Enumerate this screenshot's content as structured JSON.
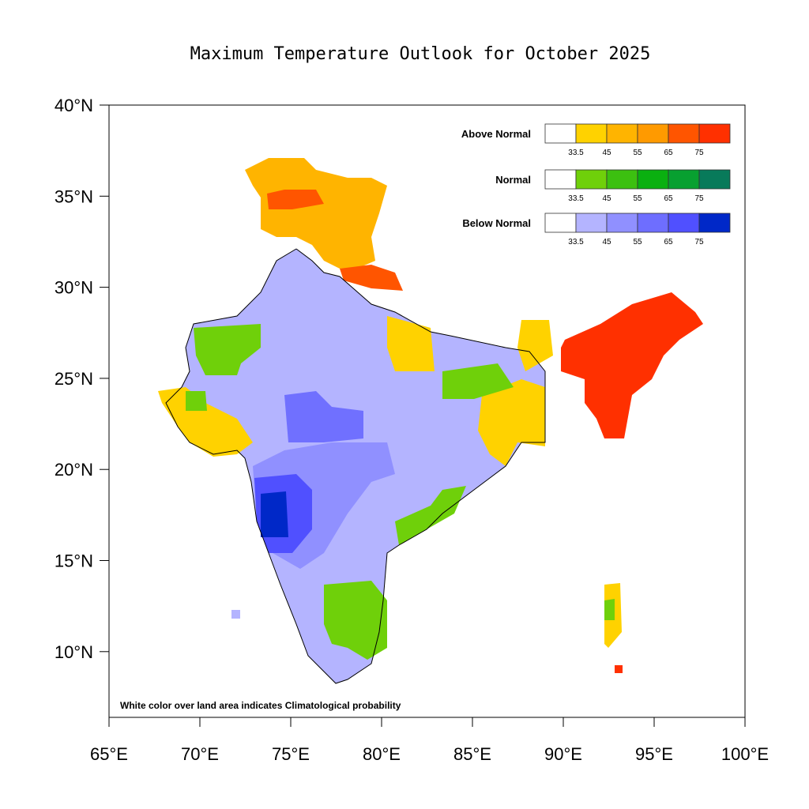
{
  "title": "Maximum Temperature Outlook for October 2025",
  "axes": {
    "x_ticks": [
      "65°E",
      "70°E",
      "75°E",
      "80°E",
      "85°E",
      "90°E",
      "95°E",
      "100°E"
    ],
    "y_ticks": [
      "40°N",
      "35°N",
      "30°N",
      "25°N",
      "20°N",
      "15°N",
      "10°N"
    ]
  },
  "legend": {
    "thresholds": [
      "33.5",
      "45",
      "55",
      "65",
      "75"
    ],
    "categories": [
      {
        "label": "Above Normal",
        "colors": [
          "#ffffff",
          "#ffd200",
          "#ffb400",
          "#ff9a00",
          "#ff5500",
          "#ff3000"
        ]
      },
      {
        "label": "Normal",
        "colors": [
          "#ffffff",
          "#6fd00a",
          "#3cc010",
          "#0ab010",
          "#08a030",
          "#087a5a"
        ]
      },
      {
        "label": "Below Normal",
        "colors": [
          "#ffffff",
          "#b4b4ff",
          "#9090ff",
          "#6e6eff",
          "#5050ff",
          "#0028c8"
        ]
      }
    ]
  },
  "note": "White color over land area indicates Climatological probability"
}
